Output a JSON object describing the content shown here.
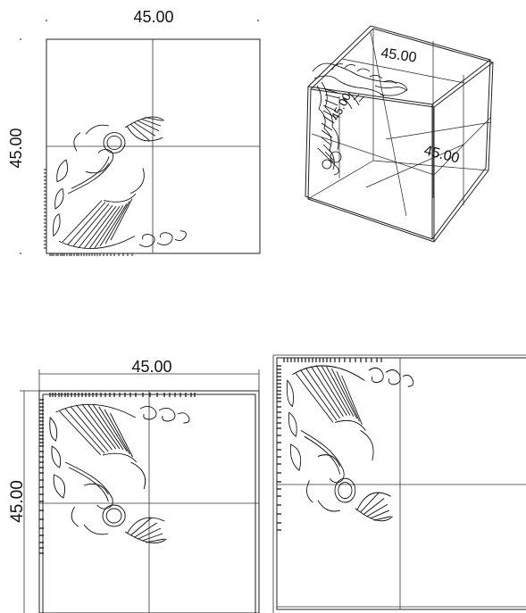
{
  "views": {
    "top_left": {
      "dimension_top": "45.00",
      "dimension_left": "45.00"
    },
    "top_right_3d": {
      "dimension_a": "45.00",
      "dimension_b": "45.00",
      "dimension_c": "45.00"
    },
    "bottom_left": {
      "dimension_top": "45.00",
      "dimension_left": "45.00"
    },
    "bottom_right": {}
  },
  "colors": {
    "line": "#222222",
    "background": "#ffffff"
  }
}
